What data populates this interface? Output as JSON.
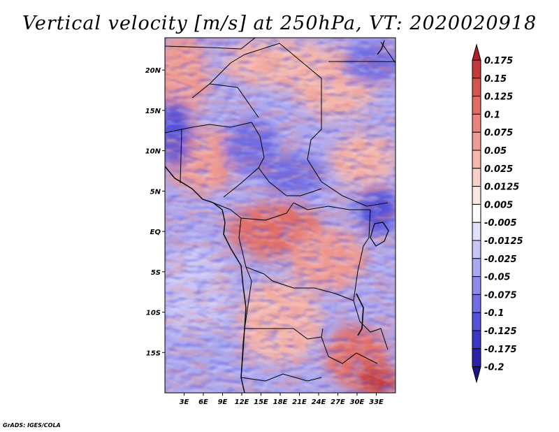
{
  "chart_data": {
    "type": "heatmap",
    "title": "Vertical velocity [m/s] at 250hPa, VT: 2020020918",
    "variable": "Vertical velocity",
    "units": "m/s",
    "level": "250hPa",
    "valid_time": "2020020918",
    "xlabel": "",
    "ylabel": "",
    "x_range_deg": [
      0,
      36
    ],
    "y_range_deg": [
      -20,
      24
    ],
    "x_ticks": [
      {
        "value": 3,
        "label": "3E"
      },
      {
        "value": 6,
        "label": "6E"
      },
      {
        "value": 9,
        "label": "9E"
      },
      {
        "value": 12,
        "label": "12E"
      },
      {
        "value": 15,
        "label": "15E"
      },
      {
        "value": 18,
        "label": "18E"
      },
      {
        "value": 21,
        "label": "21E"
      },
      {
        "value": 24,
        "label": "24E"
      },
      {
        "value": 27,
        "label": "27E"
      },
      {
        "value": 30,
        "label": "30E"
      },
      {
        "value": 33,
        "label": "33E"
      }
    ],
    "y_ticks": [
      {
        "value": 20,
        "label": "20N"
      },
      {
        "value": 15,
        "label": "15N"
      },
      {
        "value": 10,
        "label": "10N"
      },
      {
        "value": 5,
        "label": "5N"
      },
      {
        "value": 0,
        "label": "EQ"
      },
      {
        "value": -5,
        "label": "5S"
      },
      {
        "value": -10,
        "label": "10S"
      },
      {
        "value": -15,
        "label": "15S"
      }
    ],
    "colorbar": {
      "levels": [
        "0.175",
        "0.15",
        "0.125",
        "0.1",
        "0.075",
        "0.05",
        "0.025",
        "0.0125",
        "0.005",
        "-0.005",
        "-0.0125",
        "-0.025",
        "-0.05",
        "-0.075",
        "-0.1",
        "-0.125",
        "-0.175",
        "-0.2"
      ],
      "colors": [
        "#b0202a",
        "#c33a3c",
        "#d4544f",
        "#e06c66",
        "#e9857d",
        "#ef9d94",
        "#f4b7ad",
        "#f8d0c8",
        "#fbe7e2",
        "#ffffff",
        "#e2e1fb",
        "#c7c5f6",
        "#aaa8f0",
        "#8d8aea",
        "#716de3",
        "#5551d8",
        "#3c36c6",
        "#2a22a8",
        "#1a1488"
      ]
    },
    "pattern": "red = upward motion (positive), blue = downward motion (negative); strong upward motion over the Congo basin (~0-2N, 12E-22E) and southeast (~15-20S, 27E-33E); widespread weak descent over the west and north"
  },
  "credit": "GrADS: IGES/COLA"
}
